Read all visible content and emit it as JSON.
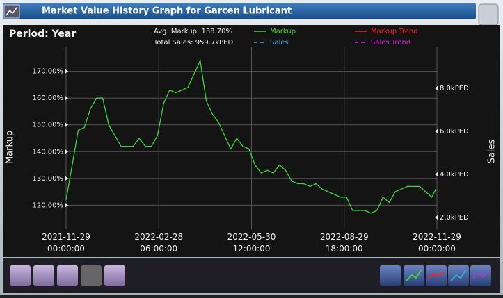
{
  "window": {
    "title": "Market Value History Graph for Garcen Lubricant"
  },
  "chart_data": {
    "type": "line",
    "period": "Period: Year",
    "stats": [
      "Avg. Markup: 138.70%",
      "Total Sales: 959.7kPED"
    ],
    "ylabel": "Markup",
    "y2label": "Sales",
    "legend": [
      {
        "name": "Markup",
        "color": "#3fd43f",
        "dash": false
      },
      {
        "name": "Sales",
        "color": "#3aa7d6",
        "dash": true
      },
      {
        "name": "Markup Trend",
        "color": "#ff2020",
        "dash": false
      },
      {
        "name": "Sales Trend",
        "color": "#e020e0",
        "dash": true
      }
    ],
    "x": [
      "2021-11-29",
      "2021-12-05",
      "2021-12-11",
      "2021-12-17",
      "2021-12-23",
      "2021-12-29",
      "2022-01-04",
      "2022-01-10",
      "2022-01-16",
      "2022-01-22",
      "2022-01-28",
      "2022-02-03",
      "2022-02-09",
      "2022-02-15",
      "2022-02-21",
      "2022-02-27",
      "2022-03-05",
      "2022-03-11",
      "2022-03-17",
      "2022-03-23",
      "2022-03-29",
      "2022-04-04",
      "2022-04-10",
      "2022-04-16",
      "2022-04-22",
      "2022-04-28",
      "2022-05-04",
      "2022-05-10",
      "2022-05-16",
      "2022-05-22",
      "2022-05-28",
      "2022-06-03",
      "2022-06-09",
      "2022-06-15",
      "2022-06-21",
      "2022-06-27",
      "2022-07-03",
      "2022-07-09",
      "2022-07-15",
      "2022-07-21",
      "2022-07-27",
      "2022-08-02",
      "2022-08-08",
      "2022-08-14",
      "2022-08-20",
      "2022-08-26",
      "2022-09-01",
      "2022-09-07",
      "2022-09-13",
      "2022-09-19",
      "2022-09-25",
      "2022-10-01",
      "2022-10-07",
      "2022-10-13",
      "2022-10-19",
      "2022-10-25",
      "2022-10-31",
      "2022-11-06",
      "2022-11-12",
      "2022-11-18",
      "2022-11-24",
      "2022-11-28"
    ],
    "series": [
      {
        "name": "Markup",
        "color": "#3fd43f",
        "values": [
          122,
          135,
          148,
          149,
          156,
          160,
          160,
          150,
          146,
          142,
          142,
          142,
          145,
          142,
          142,
          146,
          158,
          163,
          162,
          163,
          164,
          169,
          174,
          159,
          154,
          151,
          146,
          141,
          145,
          142,
          141,
          135,
          132,
          133,
          132,
          135,
          133,
          129,
          128,
          128,
          127,
          128,
          126,
          125,
          124,
          123,
          123,
          118,
          118,
          118,
          117,
          118,
          123,
          121,
          125,
          126,
          127,
          127,
          127,
          125,
          123,
          126
        ]
      }
    ],
    "xlim": [
      "2021-11-29T00:00",
      "2022-11-29T00:00"
    ],
    "xticks": [
      {
        "value": "2021-11-29T00:00",
        "label": "2021-11-29\n00:00:00"
      },
      {
        "value": "2022-02-28T06:00",
        "label": "2022-02-28\n06:00:00"
      },
      {
        "value": "2022-05-30T12:00",
        "label": "2022-05-30\n12:00:00"
      },
      {
        "value": "2022-08-29T18:00",
        "label": "2022-08-29\n18:00:00"
      },
      {
        "value": "2022-11-29T00:00",
        "label": "2022-11-29\n00:00:00"
      }
    ],
    "ylim": [
      111,
      179
    ],
    "yticks": [
      {
        "value": 120,
        "label": "120.00%"
      },
      {
        "value": 130,
        "label": "130.00%"
      },
      {
        "value": 140,
        "label": "140.00%"
      },
      {
        "value": 150,
        "label": "150.00%"
      },
      {
        "value": 160,
        "label": "160.00%"
      },
      {
        "value": 170,
        "label": "170.00%"
      }
    ],
    "y2lim": [
      1450,
      9900
    ],
    "y2ticks": [
      {
        "value": 2000,
        "label": "2.0kPED"
      },
      {
        "value": 4000,
        "label": "4.0kPED"
      },
      {
        "value": 6000,
        "label": "6.0kPED"
      },
      {
        "value": 8000,
        "label": "8.0kPED"
      }
    ],
    "grid": true
  }
}
